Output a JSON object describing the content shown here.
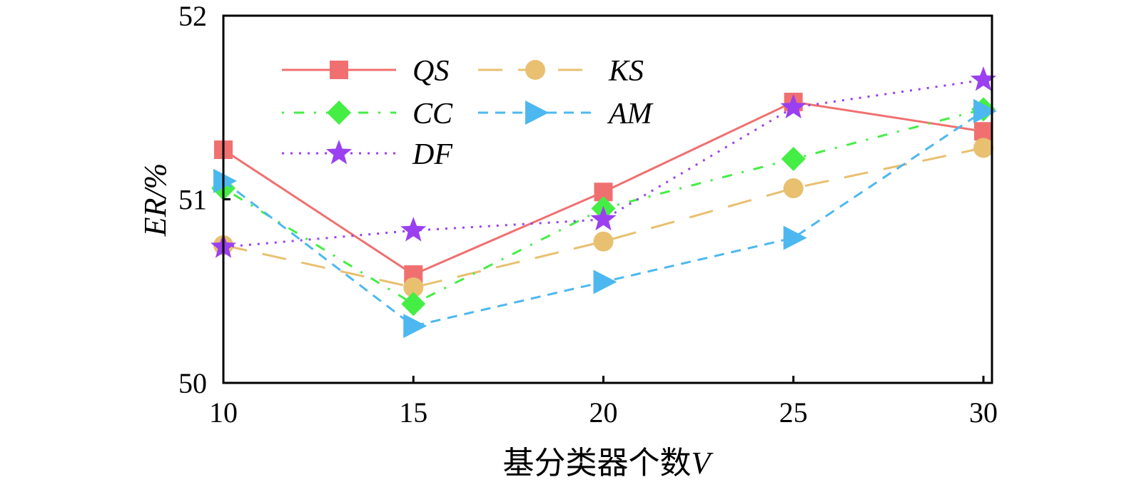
{
  "chart_data": {
    "type": "line",
    "title": "",
    "xlabel": "基分类器个数",
    "xlabel_var": "V",
    "ylabel": "ER/%",
    "x": [
      10,
      15,
      20,
      25,
      30
    ],
    "x_ticks": [
      "10",
      "15",
      "20",
      "25",
      "30"
    ],
    "y_ticks": [
      "50",
      "51",
      "52"
    ],
    "ylim": [
      50,
      52
    ],
    "xlim": [
      10,
      30
    ],
    "grid": false,
    "legend_placement": "top-left",
    "series": [
      {
        "name": "QS",
        "values": [
          51.27,
          50.59,
          51.04,
          51.53,
          51.37
        ],
        "color": "#f07070",
        "marker": "square",
        "dash": "solid"
      },
      {
        "name": "KS",
        "values": [
          50.75,
          50.52,
          50.77,
          51.06,
          51.28
        ],
        "color": "#e8c070",
        "marker": "circle",
        "dash": "longdash"
      },
      {
        "name": "CC",
        "values": [
          51.06,
          50.43,
          50.95,
          51.22,
          51.49
        ],
        "color": "#44ee44",
        "marker": "diamond",
        "dash": "dashdot"
      },
      {
        "name": "AM",
        "values": [
          51.1,
          50.31,
          50.55,
          50.79,
          51.48
        ],
        "color": "#4db8f0",
        "marker": "triangle-right",
        "dash": "dash"
      },
      {
        "name": "DF",
        "values": [
          50.74,
          50.83,
          50.89,
          51.5,
          51.65
        ],
        "color": "#9b40f0",
        "marker": "star",
        "dash": "dot"
      }
    ]
  }
}
